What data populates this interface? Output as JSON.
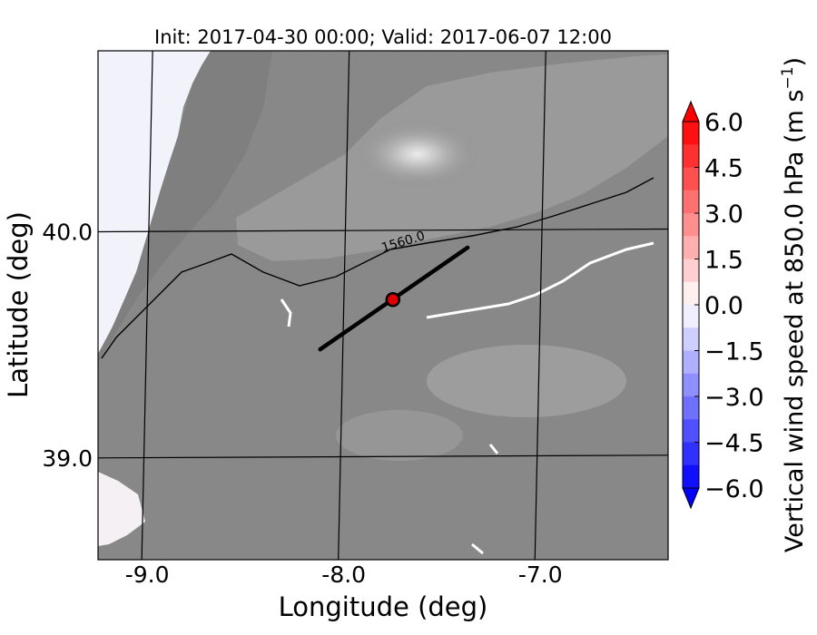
{
  "chart_data": {
    "type": "heatmap",
    "title": "Init: 2017-04-30 00:00; Valid: 2017-06-07 12:00",
    "xlabel": "Longitude (deg)",
    "ylabel": "Latitude (deg)",
    "xlim": [
      -9.25,
      -6.35
    ],
    "ylim": [
      38.55,
      40.8
    ],
    "x_ticks": [
      {
        "value": -9.0,
        "label": "-9.0"
      },
      {
        "value": -8.0,
        "label": "-8.0"
      },
      {
        "value": -7.0,
        "label": "-7.0"
      }
    ],
    "y_ticks": [
      {
        "value": 40.0,
        "label": "40.0"
      },
      {
        "value": 39.0,
        "label": "39.0"
      }
    ],
    "grid": true,
    "contour_label": "1560.0",
    "cross_section": {
      "start": {
        "lon": -8.12,
        "lat": 39.48
      },
      "end": {
        "lon": -7.37,
        "lat": 39.93
      }
    },
    "marker": {
      "lon": -7.75,
      "lat": 39.7,
      "color": "#e00000"
    },
    "colorbar": {
      "label": "Vertical wind speed at 850.0 hPa (m s",
      "label_exponent": "−1",
      "label_close": ")",
      "min": -6.0,
      "max": 6.0,
      "ticks": [
        {
          "value": 6.0,
          "label": "6.0"
        },
        {
          "value": 4.5,
          "label": "4.5"
        },
        {
          "value": 3.0,
          "label": "3.0"
        },
        {
          "value": 1.5,
          "label": "1.5"
        },
        {
          "value": 0.0,
          "label": "0.0"
        },
        {
          "value": -1.5,
          "label": "−1.5"
        },
        {
          "value": -3.0,
          "label": "−3.0"
        },
        {
          "value": -4.5,
          "label": "−4.5"
        },
        {
          "value": -6.0,
          "label": "−6.0"
        }
      ],
      "cmap": [
        "#0000ff",
        "#ffffff",
        "#ff0000"
      ],
      "extend": "both"
    }
  }
}
